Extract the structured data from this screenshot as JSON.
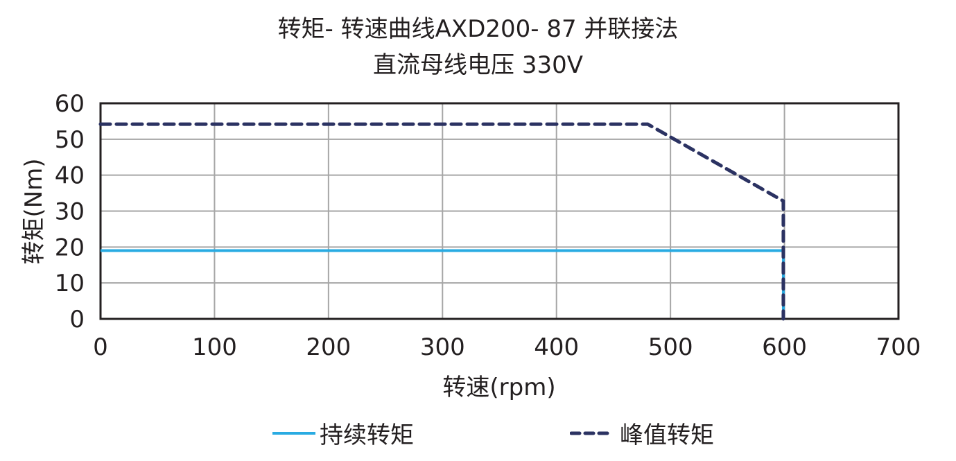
{
  "chart_data": {
    "type": "line",
    "title": "转矩- 转速曲线AXD200- 87 并联接法",
    "subtitle": "直流母线电压 330V",
    "xlabel": "转速(rpm)",
    "ylabel": "转矩(Nm)",
    "xlim": [
      0,
      700
    ],
    "ylim": [
      0,
      60
    ],
    "xticks": [
      0,
      100,
      200,
      300,
      400,
      500,
      600,
      700
    ],
    "yticks": [
      0,
      10,
      20,
      30,
      40,
      50,
      60
    ],
    "grid": true,
    "legend_position": "bottom",
    "series": [
      {
        "name": "持续转矩",
        "style": "solid",
        "color": "#29abe2",
        "x": [
          0,
          599,
          599
        ],
        "y": [
          19,
          19,
          0
        ]
      },
      {
        "name": "峰值转矩",
        "style": "dashed",
        "color": "#2b3262",
        "x": [
          0,
          480,
          599,
          599
        ],
        "y": [
          54.2,
          54.2,
          32.8,
          0
        ]
      }
    ]
  },
  "legend": {
    "continuous": "持续转矩",
    "peak": "峰值转矩"
  }
}
